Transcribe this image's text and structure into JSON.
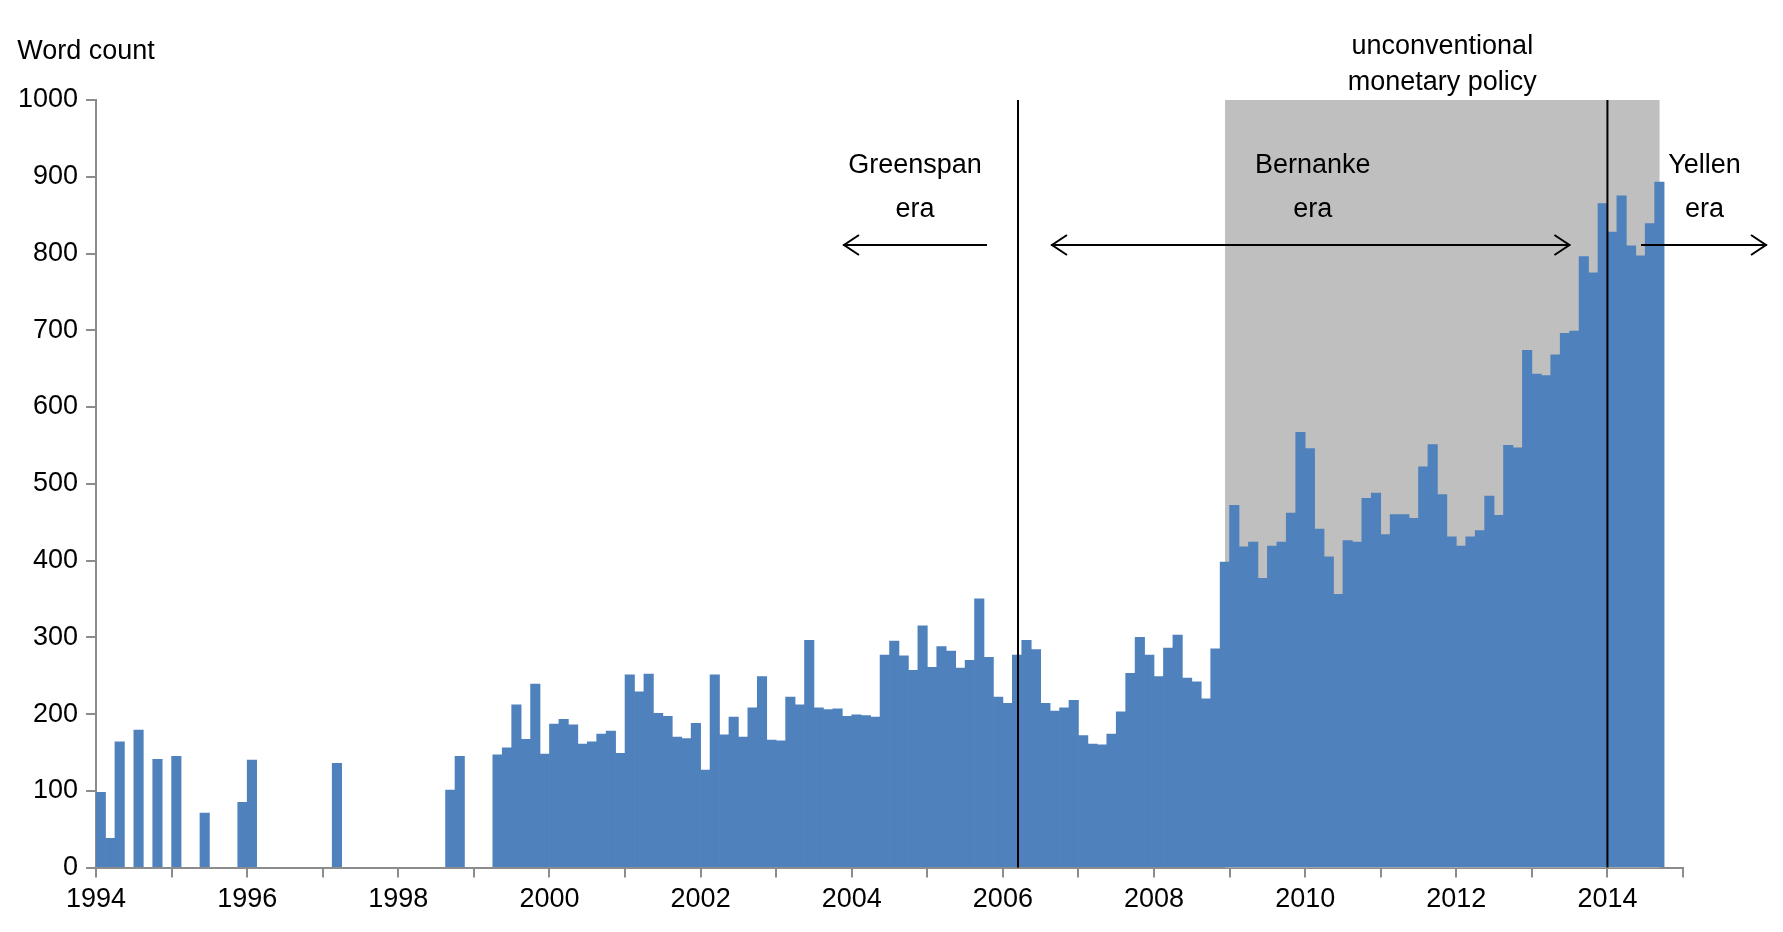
{
  "chart_data": {
    "type": "bar",
    "ylabel": "Word count",
    "color": "#4f81bd",
    "x": [
      1994.0625,
      1994.1875,
      1994.3125,
      1994.5625,
      1994.8125,
      1995.0625,
      1995.4375,
      1995.9375,
      1996.0625,
      1997.1875,
      1998.6875,
      1998.8125,
      1999.3125,
      1999.4375,
      1999.5625,
      1999.6875,
      1999.8125,
      1999.9375,
      2000.0625,
      2000.1875,
      2000.3125,
      2000.4375,
      2000.5625,
      2000.6875,
      2000.8125,
      2000.9375,
      2001.0625,
      2001.1875,
      2001.3125,
      2001.4375,
      2001.5625,
      2001.6875,
      2001.8125,
      2001.9375,
      2002.0625,
      2002.1875,
      2002.3125,
      2002.4375,
      2002.5625,
      2002.6875,
      2002.8125,
      2002.9375,
      2003.0625,
      2003.1875,
      2003.3125,
      2003.4375,
      2003.5625,
      2003.6875,
      2003.8125,
      2003.9375,
      2004.0625,
      2004.1875,
      2004.3125,
      2004.4375,
      2004.5625,
      2004.6875,
      2004.8125,
      2004.9375,
      2005.0625,
      2005.1875,
      2005.3125,
      2005.4375,
      2005.5625,
      2005.6875,
      2005.8125,
      2005.9375,
      2006.0625,
      2006.1875,
      2006.3125,
      2006.4375,
      2006.5625,
      2006.6875,
      2006.8125,
      2006.9375,
      2007.0625,
      2007.1875,
      2007.3125,
      2007.4375,
      2007.5625,
      2007.6875,
      2007.8125,
      2007.9375,
      2008.0625,
      2008.1875,
      2008.3125,
      2008.4375,
      2008.5625,
      2008.6875,
      2008.8125,
      2008.9375,
      2009.0625,
      2009.1875,
      2009.3125,
      2009.4375,
      2009.5625,
      2009.6875,
      2009.8125,
      2009.9375,
      2010.0625,
      2010.1875,
      2010.3125,
      2010.4375,
      2010.5625,
      2010.6875,
      2010.8125,
      2010.9375,
      2011.0625,
      2011.1875,
      2011.3125,
      2011.4375,
      2011.5625,
      2011.6875,
      2011.8125,
      2011.9375,
      2012.0625,
      2012.1875,
      2012.3125,
      2012.4375,
      2012.5625,
      2012.6875,
      2012.8125,
      2012.9375,
      2013.0625,
      2013.1875,
      2013.3125,
      2013.4375,
      2013.5625,
      2013.6875,
      2013.8125,
      2013.9375,
      2014.0625,
      2014.1875,
      2014.3125,
      2014.4375,
      2014.5625,
      2014.6875
    ],
    "values": [
      98,
      38,
      164,
      179,
      141,
      145,
      71,
      85,
      140,
      136,
      101,
      145,
      147,
      156,
      212,
      167,
      239,
      148,
      187,
      193,
      186,
      161,
      164,
      174,
      178,
      149,
      251,
      229,
      252,
      201,
      197,
      170,
      168,
      188,
      127,
      251,
      173,
      196,
      170,
      208,
      249,
      166,
      165,
      222,
      212,
      296,
      208,
      206,
      207,
      197,
      199,
      198,
      196,
      277,
      295,
      276,
      257,
      315,
      261,
      288,
      282,
      260,
      270,
      350,
      274,
      222,
      214,
      277,
      296,
      284,
      214,
      204,
      208,
      218,
      172,
      161,
      160,
      174,
      203,
      253,
      300,
      277,
      249,
      286,
      303,
      247,
      242,
      220,
      285,
      398,
      472,
      418,
      424,
      377,
      419,
      424,
      462,
      567,
      546,
      441,
      405,
      356,
      426,
      424,
      481,
      488,
      434,
      460,
      460,
      455,
      522,
      551,
      486,
      431,
      419,
      431,
      439,
      484,
      459,
      550,
      547,
      674,
      643,
      641,
      668,
      696,
      699,
      796,
      775,
      865,
      828,
      875,
      810,
      797,
      839,
      893
    ],
    "xlim": [
      1994,
      2015
    ],
    "xticks": [
      1994,
      {
        "value": 1995,
        "label": null
      },
      1996,
      {
        "value": 1997,
        "label": null
      },
      1998,
      {
        "value": 1999,
        "label": null
      },
      2000,
      {
        "value": 2001,
        "label": null
      },
      2002,
      {
        "value": 2003,
        "label": null
      },
      2004,
      {
        "value": 2005,
        "label": null
      },
      2006,
      {
        "value": 2007,
        "label": null
      },
      2008,
      {
        "value": 2009,
        "label": null
      },
      2010,
      {
        "value": 2011,
        "label": null
      },
      2012,
      {
        "value": 2013,
        "label": null
      },
      2014,
      {
        "value": 2015,
        "label": null
      }
    ],
    "ylim": [
      0,
      1000
    ],
    "yticks": [
      0,
      100,
      200,
      300,
      400,
      500,
      600,
      700,
      800,
      900,
      1000
    ],
    "ref_lines": [
      {
        "axis": "x",
        "value": 2006.2,
        "label": null,
        "color": "#000000"
      },
      {
        "axis": "x",
        "value": 2014.0,
        "label": null,
        "color": "#000000"
      }
    ],
    "bands": [
      {
        "axis": "x",
        "from": 2008.94,
        "to": 2014.69,
        "label": "unconventional\nmonetary policy",
        "color": "#bfbfbf"
      }
    ],
    "annotations": [
      "Greenspan\nera",
      "Bernanke\nera",
      "Yellen\nera"
    ],
    "grid": false,
    "legend": false
  }
}
